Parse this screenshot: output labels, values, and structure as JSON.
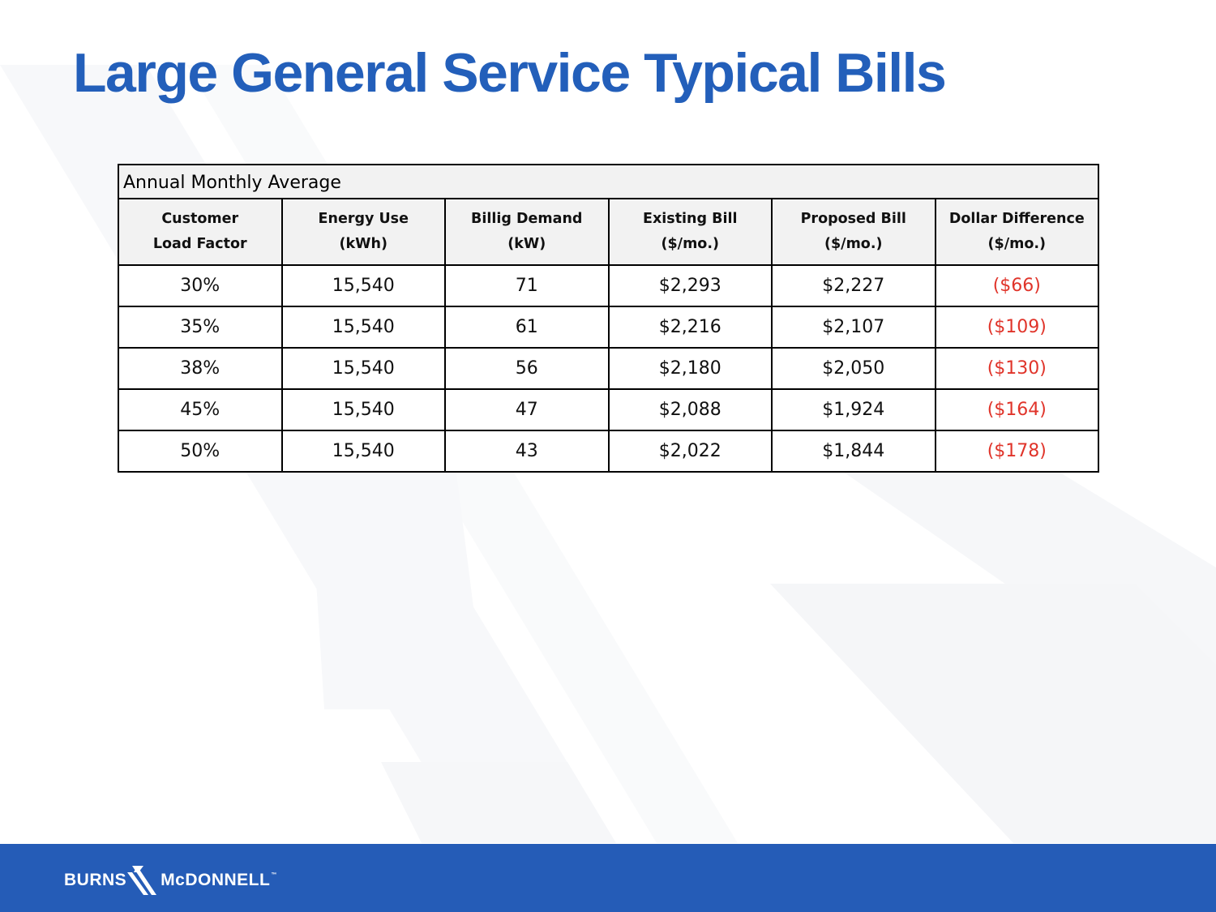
{
  "title": "Large General Service Typical Bills",
  "table": {
    "caption": "Annual Monthly Average",
    "headers": [
      [
        "Customer",
        "Load Factor"
      ],
      [
        "Energy Use",
        "(kWh)"
      ],
      [
        "Billig Demand",
        "(kW)"
      ],
      [
        "Existing Bill",
        "($/mo.)"
      ],
      [
        "Proposed Bill",
        "($/mo.)"
      ],
      [
        "Dollar Difference",
        "($/mo.)"
      ]
    ],
    "rows": [
      [
        "30%",
        "15,540",
        "71",
        "$2,293",
        "$2,227",
        "($66)"
      ],
      [
        "35%",
        "15,540",
        "61",
        "$2,216",
        "$2,107",
        "($109)"
      ],
      [
        "38%",
        "15,540",
        "56",
        "$2,180",
        "$2,050",
        "($130)"
      ],
      [
        "45%",
        "15,540",
        "47",
        "$2,088",
        "$1,924",
        "($164)"
      ],
      [
        "50%",
        "15,540",
        "43",
        "$2,022",
        "$1,844",
        "($178)"
      ]
    ]
  },
  "footer": {
    "logo_left": "BURNS",
    "logo_right": "McDONNELL",
    "logo_tm": "™"
  },
  "colors": {
    "title": "#235fba",
    "footer_bar": "#255cb7",
    "negative_value": "#e0342a",
    "header_fill": "#f2f2f2"
  }
}
